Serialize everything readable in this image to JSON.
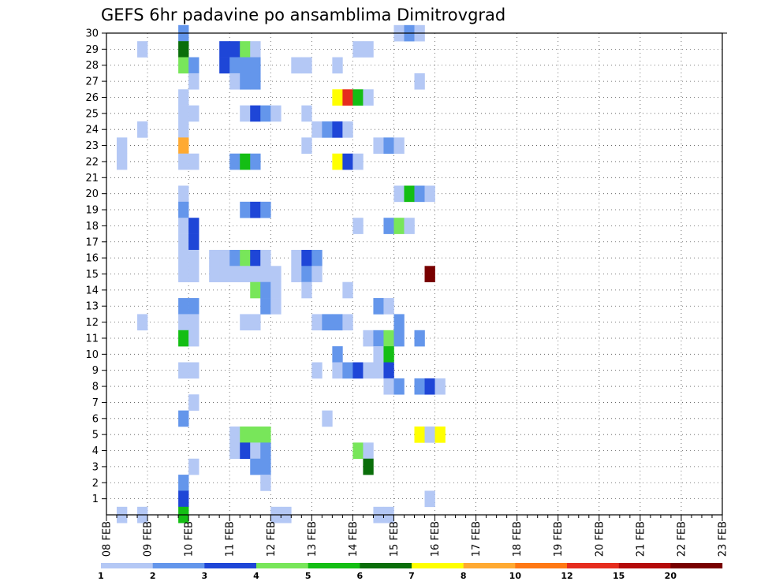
{
  "chart_data": {
    "type": "heatmap",
    "title": "GEFS 6hr padavine po ansamblima Dimitrovgrad",
    "xlabel": "",
    "ylabel": "",
    "x_range": [
      "08 FEB 00Z",
      "23 FEB 00Z"
    ],
    "x_step_hours": 6,
    "x_tick_labels": [
      "08 FEB",
      "09 FEB",
      "10 FEB",
      "11 FEB",
      "12 FEB",
      "13 FEB",
      "14 FEB",
      "15 FEB",
      "16 FEB",
      "17 FEB",
      "18 FEB",
      "19 FEB",
      "20 FEB",
      "21 FEB",
      "22 FEB",
      "23 FEB"
    ],
    "y_tick_labels": [
      "1",
      "2",
      "3",
      "4",
      "5",
      "6",
      "7",
      "8",
      "9",
      "10",
      "11",
      "12",
      "13",
      "14",
      "15",
      "16",
      "17",
      "18",
      "19",
      "20",
      "21",
      "22",
      "23",
      "24",
      "25",
      "26",
      "27",
      "28",
      "29",
      "30"
    ],
    "y_range": [
      0,
      30
    ],
    "grid": true,
    "legend_position": "bottom",
    "color_scale": {
      "bounds": [
        "1",
        "2",
        "3",
        "4",
        "5",
        "6",
        "7",
        "8",
        "10",
        "12",
        "15",
        "20"
      ],
      "colors": [
        "#b4c8f5",
        "#6496eb",
        "#1e46d7",
        "#78e65a",
        "#14be14",
        "#0a6e0a",
        "#ffff00",
        "#ffaa32",
        "#ff7814",
        "#e62d1e",
        "#b40a0a",
        "#780000"
      ]
    },
    "cells_note": "each cell: [member, 6h-step index from 08 FEB 00Z, color class 0-11]",
    "cells": [
      [
        30,
        7,
        1
      ],
      [
        30,
        28,
        0
      ],
      [
        30,
        29,
        1
      ],
      [
        30,
        30,
        0
      ],
      [
        29,
        3,
        0
      ],
      [
        29,
        7,
        5
      ],
      [
        29,
        11,
        2
      ],
      [
        29,
        12,
        2
      ],
      [
        29,
        13,
        3
      ],
      [
        29,
        14,
        0
      ],
      [
        29,
        24,
        0
      ],
      [
        29,
        25,
        0
      ],
      [
        28,
        7,
        3
      ],
      [
        28,
        8,
        1
      ],
      [
        28,
        11,
        2
      ],
      [
        28,
        12,
        1
      ],
      [
        28,
        13,
        1
      ],
      [
        28,
        14,
        1
      ],
      [
        28,
        18,
        0
      ],
      [
        28,
        19,
        0
      ],
      [
        28,
        22,
        0
      ],
      [
        27,
        8,
        0
      ],
      [
        27,
        12,
        0
      ],
      [
        27,
        13,
        1
      ],
      [
        27,
        14,
        1
      ],
      [
        27,
        30,
        0
      ],
      [
        26,
        7,
        0
      ],
      [
        26,
        22,
        6
      ],
      [
        26,
        23,
        9
      ],
      [
        26,
        24,
        4
      ],
      [
        26,
        25,
        0
      ],
      [
        25,
        7,
        0
      ],
      [
        25,
        8,
        0
      ],
      [
        25,
        13,
        0
      ],
      [
        25,
        14,
        2
      ],
      [
        25,
        15,
        1
      ],
      [
        25,
        16,
        0
      ],
      [
        25,
        19,
        0
      ],
      [
        24,
        3,
        0
      ],
      [
        24,
        7,
        0
      ],
      [
        24,
        20,
        0
      ],
      [
        24,
        21,
        1
      ],
      [
        24,
        22,
        2
      ],
      [
        24,
        23,
        0
      ],
      [
        23,
        1,
        0
      ],
      [
        23,
        7,
        7
      ],
      [
        23,
        19,
        0
      ],
      [
        23,
        26,
        0
      ],
      [
        23,
        27,
        1
      ],
      [
        23,
        28,
        0
      ],
      [
        22,
        1,
        0
      ],
      [
        22,
        7,
        0
      ],
      [
        22,
        8,
        0
      ],
      [
        22,
        12,
        1
      ],
      [
        22,
        13,
        4
      ],
      [
        22,
        14,
        1
      ],
      [
        22,
        22,
        6
      ],
      [
        22,
        23,
        2
      ],
      [
        22,
        24,
        0
      ],
      [
        20,
        7,
        0
      ],
      [
        20,
        28,
        0
      ],
      [
        20,
        29,
        4
      ],
      [
        20,
        30,
        1
      ],
      [
        20,
        31,
        0
      ],
      [
        19,
        7,
        1
      ],
      [
        19,
        13,
        1
      ],
      [
        19,
        14,
        2
      ],
      [
        19,
        15,
        1
      ],
      [
        18,
        7,
        0
      ],
      [
        18,
        8,
        2
      ],
      [
        18,
        24,
        0
      ],
      [
        18,
        27,
        1
      ],
      [
        18,
        28,
        3
      ],
      [
        18,
        29,
        0
      ],
      [
        17,
        7,
        0
      ],
      [
        17,
        8,
        2
      ],
      [
        16,
        7,
        0
      ],
      [
        16,
        8,
        0
      ],
      [
        16,
        10,
        0
      ],
      [
        16,
        11,
        0
      ],
      [
        16,
        12,
        1
      ],
      [
        16,
        13,
        3
      ],
      [
        16,
        14,
        2
      ],
      [
        16,
        15,
        0
      ],
      [
        16,
        18,
        0
      ],
      [
        16,
        19,
        2
      ],
      [
        16,
        20,
        1
      ],
      [
        15,
        7,
        0
      ],
      [
        15,
        8,
        0
      ],
      [
        15,
        10,
        0
      ],
      [
        15,
        11,
        0
      ],
      [
        15,
        12,
        0
      ],
      [
        15,
        13,
        0
      ],
      [
        15,
        14,
        0
      ],
      [
        15,
        15,
        0
      ],
      [
        15,
        16,
        0
      ],
      [
        15,
        18,
        0
      ],
      [
        15,
        19,
        1
      ],
      [
        15,
        20,
        0
      ],
      [
        15,
        31,
        11
      ],
      [
        14,
        14,
        3
      ],
      [
        14,
        15,
        1
      ],
      [
        14,
        16,
        0
      ],
      [
        14,
        19,
        0
      ],
      [
        14,
        23,
        0
      ],
      [
        13,
        7,
        1
      ],
      [
        13,
        8,
        1
      ],
      [
        13,
        15,
        1
      ],
      [
        13,
        16,
        0
      ],
      [
        13,
        26,
        1
      ],
      [
        13,
        27,
        0
      ],
      [
        12,
        3,
        0
      ],
      [
        12,
        7,
        0
      ],
      [
        12,
        8,
        0
      ],
      [
        12,
        13,
        0
      ],
      [
        12,
        14,
        0
      ],
      [
        12,
        20,
        0
      ],
      [
        12,
        21,
        1
      ],
      [
        12,
        22,
        1
      ],
      [
        12,
        23,
        0
      ],
      [
        12,
        28,
        1
      ],
      [
        11,
        7,
        4
      ],
      [
        11,
        8,
        0
      ],
      [
        11,
        25,
        0
      ],
      [
        11,
        26,
        1
      ],
      [
        11,
        27,
        3
      ],
      [
        11,
        28,
        1
      ],
      [
        11,
        30,
        1
      ],
      [
        10,
        22,
        1
      ],
      [
        10,
        26,
        0
      ],
      [
        10,
        27,
        4
      ],
      [
        9,
        7,
        0
      ],
      [
        9,
        8,
        0
      ],
      [
        9,
        20,
        0
      ],
      [
        9,
        22,
        0
      ],
      [
        9,
        23,
        1
      ],
      [
        9,
        24,
        2
      ],
      [
        9,
        25,
        0
      ],
      [
        9,
        26,
        0
      ],
      [
        9,
        27,
        2
      ],
      [
        8,
        27,
        0
      ],
      [
        8,
        28,
        1
      ],
      [
        8,
        30,
        1
      ],
      [
        8,
        31,
        2
      ],
      [
        8,
        32,
        0
      ],
      [
        7,
        8,
        0
      ],
      [
        6,
        7,
        1
      ],
      [
        6,
        21,
        0
      ],
      [
        5,
        12,
        0
      ],
      [
        5,
        13,
        3
      ],
      [
        5,
        14,
        3
      ],
      [
        5,
        15,
        3
      ],
      [
        5,
        30,
        6
      ],
      [
        5,
        31,
        0
      ],
      [
        5,
        32,
        6
      ],
      [
        4,
        12,
        0
      ],
      [
        4,
        13,
        2
      ],
      [
        4,
        14,
        0
      ],
      [
        4,
        15,
        1
      ],
      [
        4,
        24,
        3
      ],
      [
        4,
        25,
        0
      ],
      [
        3,
        8,
        0
      ],
      [
        3,
        14,
        1
      ],
      [
        3,
        15,
        1
      ],
      [
        3,
        25,
        5
      ],
      [
        2,
        7,
        1
      ],
      [
        2,
        15,
        0
      ],
      [
        1,
        7,
        2
      ],
      [
        1,
        31,
        0
      ],
      [
        0,
        1,
        0
      ],
      [
        0,
        3,
        0
      ],
      [
        0,
        7,
        4
      ],
      [
        0,
        16,
        0
      ],
      [
        0,
        17,
        0
      ],
      [
        0,
        26,
        0
      ],
      [
        0,
        27,
        0
      ]
    ]
  }
}
